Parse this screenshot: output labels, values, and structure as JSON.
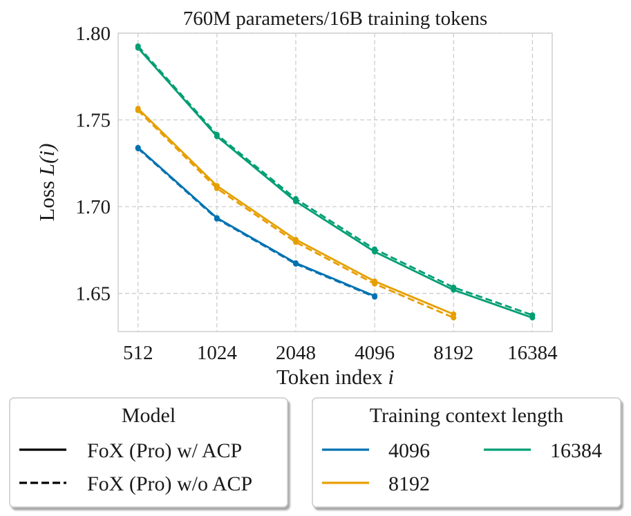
{
  "chart_data": {
    "type": "line",
    "title": "760M parameters/16B training tokens",
    "xlabel": "Token index",
    "xlabel_var": "i",
    "ylabel": "Loss",
    "ylabel_var": "L(i)",
    "x_scale": "log2",
    "categories": [
      "512",
      "1024",
      "2048",
      "4096",
      "8192",
      "16384"
    ],
    "x": [
      512,
      1024,
      2048,
      4096,
      8192,
      16384
    ],
    "xlim": [
      430,
      19500
    ],
    "ylim": [
      1.628,
      1.8
    ],
    "yticks": [
      "1.65",
      "1.70",
      "1.75",
      "1.80"
    ],
    "ytick_values": [
      1.65,
      1.7,
      1.75,
      1.8
    ],
    "grid": true,
    "series": [
      {
        "name": "4096 / FoX (Pro) w/ ACP",
        "context": "4096",
        "model": "FoX (Pro) w/ ACP",
        "color": "#0072b2",
        "dashed": false,
        "x": [
          512,
          1024,
          2048,
          4096
        ],
        "values": [
          1.734,
          1.6935,
          1.6675,
          1.6485
        ]
      },
      {
        "name": "4096 / FoX (Pro) w/o ACP",
        "context": "4096",
        "model": "FoX (Pro) w/o ACP",
        "color": "#0072b2",
        "dashed": true,
        "x": [
          512,
          1024,
          2048,
          4096
        ],
        "values": [
          1.7335,
          1.693,
          1.667,
          1.648
        ]
      },
      {
        "name": "8192 / FoX (Pro) w/ ACP",
        "context": "8192",
        "model": "FoX (Pro) w/ ACP",
        "color": "#e69f00",
        "dashed": false,
        "x": [
          512,
          1024,
          2048,
          4096,
          8192
        ],
        "values": [
          1.7565,
          1.712,
          1.681,
          1.657,
          1.638
        ]
      },
      {
        "name": "8192 / FoX (Pro) w/o ACP",
        "context": "8192",
        "model": "FoX (Pro) w/o ACP",
        "color": "#e69f00",
        "dashed": true,
        "x": [
          512,
          1024,
          2048,
          4096,
          8192
        ],
        "values": [
          1.7555,
          1.7105,
          1.6795,
          1.6555,
          1.636
        ]
      },
      {
        "name": "16384 / FoX (Pro) w/ ACP",
        "context": "16384",
        "model": "FoX (Pro) w/ ACP",
        "color": "#009e73",
        "dashed": false,
        "x": [
          512,
          1024,
          2048,
          4096,
          8192,
          16384
        ],
        "values": [
          1.7915,
          1.7405,
          1.703,
          1.674,
          1.652,
          1.636
        ]
      },
      {
        "name": "16384 / FoX (Pro) w/o ACP",
        "context": "16384",
        "model": "FoX (Pro) w/o ACP",
        "color": "#009e73",
        "dashed": true,
        "x": [
          512,
          1024,
          2048,
          4096,
          8192,
          16384
        ],
        "values": [
          1.7925,
          1.7415,
          1.7045,
          1.6755,
          1.6535,
          1.6375
        ]
      }
    ],
    "legends": [
      {
        "title": "Model",
        "placement": "bottom-left",
        "entries": [
          {
            "label": "FoX (Pro) w/ ACP",
            "style": "solid",
            "color": "#000000"
          },
          {
            "label": "FoX (Pro) w/o ACP",
            "style": "dashed",
            "color": "#000000"
          }
        ]
      },
      {
        "title": "Training context length",
        "placement": "bottom-right",
        "entries": [
          {
            "label": "4096",
            "style": "solid",
            "color": "#0072b2"
          },
          {
            "label": "16384",
            "style": "solid",
            "color": "#009e73"
          },
          {
            "label": "8192",
            "style": "solid",
            "color": "#e69f00"
          }
        ]
      }
    ]
  }
}
